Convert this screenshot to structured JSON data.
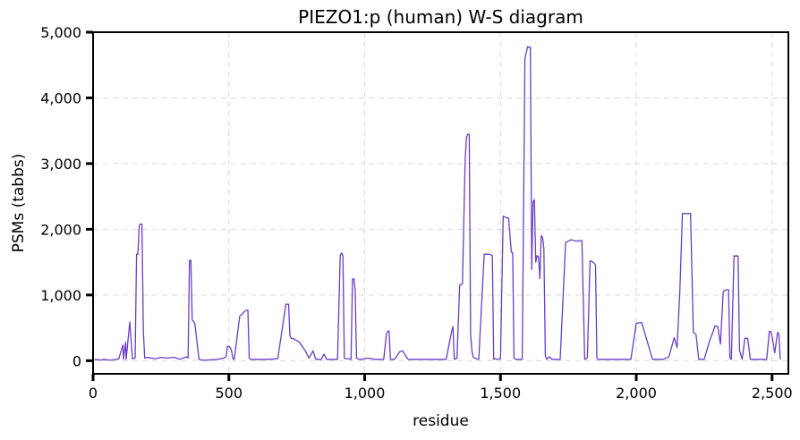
{
  "chart_data": {
    "type": "line",
    "title": "PIEZO1:p (human) W-S diagram",
    "xlabel": "residue",
    "ylabel": "PSMs (tabbs)",
    "xlim": [
      0,
      2560
    ],
    "ylim": [
      -200,
      5000
    ],
    "xticks": [
      0,
      500,
      1000,
      1500,
      2000,
      2500
    ],
    "xtick_labels": [
      "0",
      "500",
      "1,000",
      "1,500",
      "2,000",
      "2,500"
    ],
    "yticks": [
      0,
      1000,
      2000,
      3000,
      4000,
      5000
    ],
    "ytick_labels": [
      "0",
      "1,000",
      "2,000",
      "3,000",
      "4,000",
      "5,000"
    ],
    "grid": true,
    "color": "#6a3dc8",
    "series": [
      {
        "x": [
          5,
          30,
          40,
          60,
          70,
          85,
          95,
          110,
          112,
          120,
          122,
          135,
          145,
          155,
          160,
          165,
          170,
          175,
          180,
          185,
          190,
          200,
          230,
          250,
          270,
          300,
          320,
          345,
          350,
          355,
          360,
          365,
          370,
          375,
          390,
          400,
          420,
          460,
          480,
          490,
          495,
          500,
          505,
          510,
          515,
          520,
          540,
          550,
          560,
          570,
          575,
          580,
          600,
          640,
          680,
          710,
          720,
          725,
          730,
          740,
          760,
          780,
          795,
          810,
          820,
          840,
          850,
          860,
          880,
          900,
          910,
          915,
          920,
          925,
          930,
          940,
          950,
          955,
          960,
          965,
          970,
          980,
          990,
          1010,
          1040,
          1070,
          1080,
          1085,
          1090,
          1095,
          1110,
          1130,
          1140,
          1150,
          1160,
          1180,
          1200,
          1240,
          1270,
          1300,
          1320,
          1325,
          1330,
          1340,
          1350,
          1360,
          1370,
          1375,
          1380,
          1385,
          1390,
          1395,
          1400,
          1410,
          1420,
          1440,
          1460,
          1470,
          1475,
          1480,
          1490,
          1500,
          1510,
          1520,
          1530,
          1540,
          1545,
          1550,
          1555,
          1560,
          1570,
          1580,
          1590,
          1600,
          1610,
          1615,
          1620,
          1625,
          1630,
          1635,
          1640,
          1645,
          1650,
          1655,
          1660,
          1665,
          1670,
          1675,
          1680,
          1685,
          1690,
          1700,
          1720,
          1740,
          1760,
          1780,
          1800,
          1810,
          1815,
          1820,
          1830,
          1840,
          1850,
          1855,
          1860,
          1880,
          1890,
          1895,
          1900,
          1905,
          1910,
          1920,
          1940,
          1960,
          1980,
          2000,
          2020,
          2060,
          2100,
          2120,
          2140,
          2150,
          2160,
          2170,
          2180,
          2200,
          2210,
          2220,
          2230,
          2240,
          2250,
          2270,
          2290,
          2300,
          2310,
          2320,
          2330,
          2340,
          2345,
          2350,
          2360,
          2365,
          2370,
          2375,
          2380,
          2390,
          2400,
          2410,
          2420,
          2440,
          2460,
          2480,
          2490,
          2495,
          2500,
          2510,
          2520,
          2525,
          2530
        ],
        "y": [
          20,
          10,
          20,
          10,
          10,
          20,
          30,
          240,
          20,
          280,
          20,
          590,
          30,
          40,
          1620,
          1620,
          2060,
          2080,
          2080,
          450,
          40,
          50,
          30,
          50,
          40,
          50,
          20,
          60,
          40,
          1520,
          1530,
          620,
          600,
          560,
          20,
          10,
          10,
          20,
          40,
          60,
          220,
          220,
          200,
          150,
          30,
          20,
          680,
          710,
          760,
          770,
          40,
          20,
          20,
          20,
          30,
          860,
          860,
          380,
          340,
          330,
          280,
          160,
          40,
          150,
          20,
          20,
          100,
          20,
          20,
          20,
          1600,
          1640,
          1600,
          40,
          30,
          30,
          20,
          1240,
          1250,
          1080,
          40,
          20,
          20,
          40,
          20,
          20,
          400,
          450,
          450,
          20,
          20,
          140,
          150,
          80,
          20,
          20,
          20,
          20,
          20,
          20,
          440,
          520,
          20,
          40,
          1150,
          1170,
          3050,
          3400,
          3450,
          3440,
          400,
          150,
          50,
          30,
          20,
          1620,
          1620,
          1600,
          20,
          30,
          20,
          30,
          2200,
          2180,
          2170,
          1650,
          1650,
          40,
          20,
          20,
          20,
          20,
          4600,
          4780,
          4770,
          1390,
          2420,
          2450,
          1500,
          1600,
          1580,
          1250,
          1900,
          1880,
          1700,
          80,
          20,
          40,
          60,
          40,
          20,
          20,
          20,
          1800,
          1840,
          1820,
          1830,
          20,
          30,
          50,
          1520,
          1500,
          1460,
          40,
          20,
          20,
          20,
          20,
          20,
          20,
          20,
          20,
          20,
          20,
          20,
          570,
          580,
          20,
          20,
          60,
          350,
          200,
          1010,
          2240,
          2240,
          2240,
          430,
          400,
          20,
          20,
          20,
          300,
          530,
          520,
          250,
          1050,
          1080,
          1080,
          40,
          20,
          1600,
          1590,
          1600,
          1590,
          160,
          20,
          340,
          340,
          20,
          20,
          20,
          20,
          450,
          440,
          370,
          120,
          430,
          410,
          20
        ]
      }
    ]
  }
}
